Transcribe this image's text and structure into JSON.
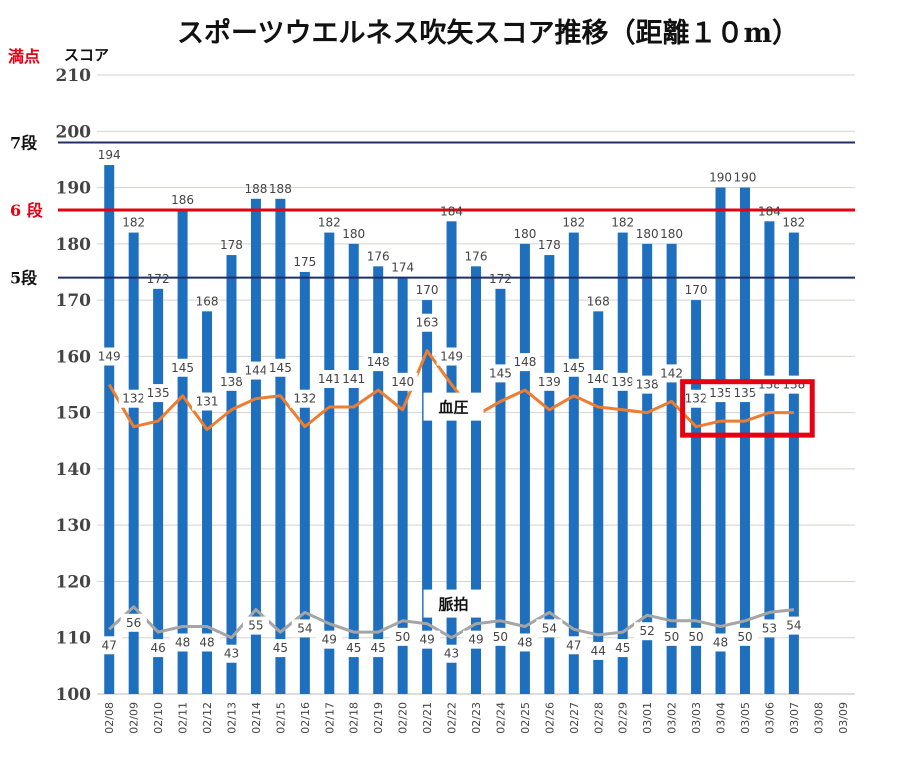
{
  "chart_data": {
    "type": "bar",
    "title": "スポーツウエルネス吹矢スコア推移（距離１０m）",
    "ylabel": "スコア",
    "ylim": [
      100,
      210
    ],
    "yticks": [
      100,
      110,
      120,
      130,
      140,
      150,
      160,
      170,
      180,
      190,
      200,
      210
    ],
    "grid": true,
    "categories": [
      "02/08",
      "02/09",
      "02/10",
      "02/11",
      "02/12",
      "02/13",
      "02/14",
      "02/15",
      "02/16",
      "02/17",
      "02/18",
      "02/19",
      "02/20",
      "02/21",
      "02/22",
      "02/23",
      "02/24",
      "02/25",
      "02/26",
      "02/27",
      "02/28",
      "02/29",
      "03/01",
      "03/02",
      "03/03",
      "03/04",
      "03/05",
      "03/06",
      "03/07",
      "03/08",
      "03/09"
    ],
    "series": [
      {
        "type": "bar",
        "values": [
          194,
          182,
          172,
          186,
          168,
          178,
          188,
          188,
          175,
          182,
          180,
          176,
          174,
          170,
          184,
          176,
          172,
          180,
          178,
          182,
          168,
          182,
          180,
          180,
          170,
          190,
          190,
          184,
          182,
          null,
          null
        ]
      },
      {
        "name": "血圧",
        "type": "line",
        "labels": [
          149,
          132,
          135,
          145,
          131,
          138,
          144,
          145,
          132,
          141,
          141,
          148,
          140,
          163,
          149,
          null,
          145,
          148,
          139,
          145,
          140,
          139,
          138,
          142,
          132,
          135,
          135,
          138,
          138,
          null,
          null
        ],
        "values": [
          155,
          147.5,
          148.5,
          153,
          147,
          150.5,
          152.5,
          153,
          147.5,
          151,
          151,
          154,
          150.5,
          161,
          155,
          149.5,
          152,
          154,
          150.5,
          153,
          151,
          150.5,
          150,
          152,
          147.5,
          148.5,
          148.5,
          150,
          150,
          null,
          null
        ]
      },
      {
        "name": "脈拍",
        "type": "line",
        "labels": [
          47,
          56,
          46,
          48,
          48,
          43,
          55,
          45,
          54,
          49,
          45,
          45,
          50,
          49,
          43,
          49,
          50,
          48,
          54,
          47,
          44,
          45,
          52,
          50,
          50,
          48,
          50,
          53,
          54,
          null,
          null
        ],
        "values": [
          111.5,
          115.5,
          111,
          112,
          112,
          110,
          115,
          111,
          114.5,
          112.5,
          111,
          111,
          113,
          112.5,
          110,
          112.5,
          113,
          112,
          114.5,
          111.5,
          110.5,
          111,
          114,
          113,
          113,
          112,
          113,
          114.5,
          115,
          null,
          null
        ]
      }
    ],
    "colors": {
      "bar": "#1f6fbf",
      "bp_line": "#ed7d31",
      "pulse_line": "#a5a5a5",
      "grid": "#d9d2cf",
      "dan_dark": "#1f2f6b",
      "dan_red": "#e60012",
      "highlight": "#e60012"
    },
    "reference_lines": [
      {
        "label": "7段",
        "value": 198,
        "color": "#1f2f6b"
      },
      {
        "label": "6 段",
        "value": 186,
        "color": "#e60012"
      },
      {
        "label": "5段",
        "value": 174,
        "color": "#1f2f6b"
      }
    ],
    "max_label": "満点",
    "highlight_range": [
      "03/03",
      "03/07"
    ]
  }
}
